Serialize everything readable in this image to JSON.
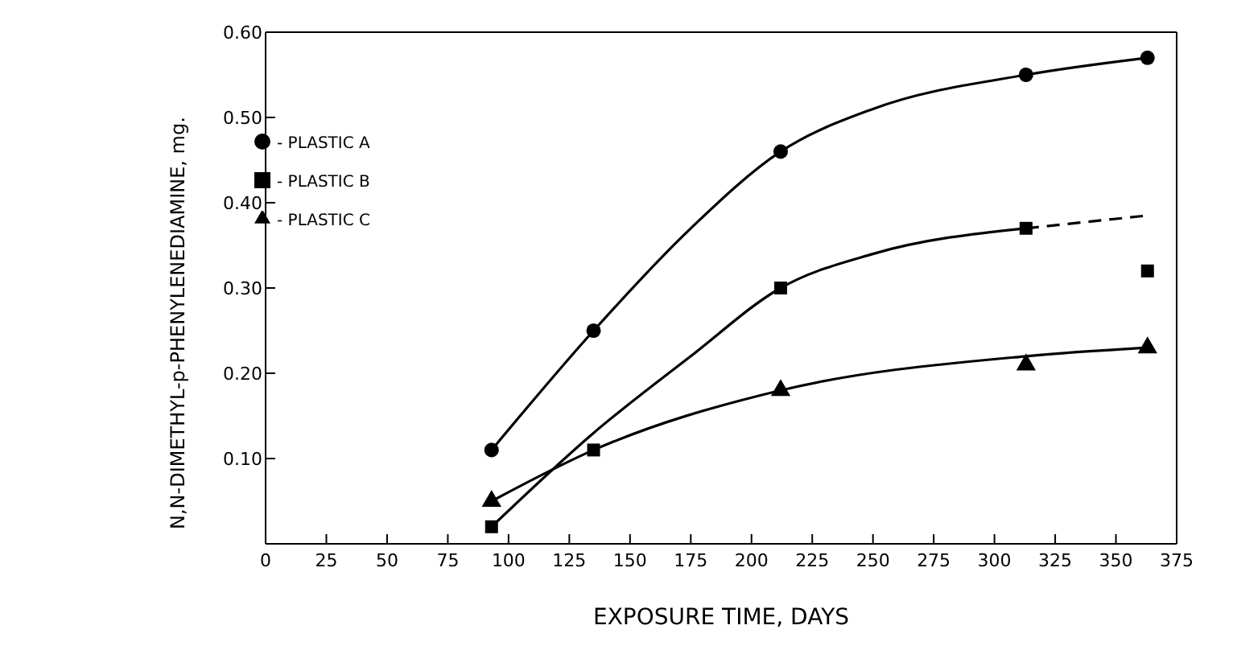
{
  "chart_data": {
    "type": "scatter",
    "xlabel": "EXPOSURE TIME, DAYS",
    "ylabel": "N,N-DIMETHYL-p-PHENYLENEDIAMINE, mg.",
    "xlim": [
      0,
      375
    ],
    "xticks": [
      0,
      25,
      50,
      75,
      100,
      125,
      150,
      175,
      200,
      225,
      250,
      275,
      300,
      325,
      350,
      375
    ],
    "ylim": [
      0,
      0.6
    ],
    "yticks": [
      {
        "value": 0.1,
        "label": "0.10"
      },
      {
        "value": 0.2,
        "label": "0.20"
      },
      {
        "value": 0.3,
        "label": "0.30"
      },
      {
        "value": 0.4,
        "label": "0.40"
      },
      {
        "value": 0.5,
        "label": "0.50"
      },
      {
        "value": 0.6,
        "label": "0.60"
      }
    ],
    "legend": "top left",
    "series": [
      {
        "name": "- PLASTIC A",
        "color": "#000000",
        "marker": "circle",
        "x": [
          93,
          135,
          212,
          313,
          363
        ],
        "values": [
          0.11,
          0.25,
          0.46,
          0.55,
          0.57
        ]
      },
      {
        "name": "- PLASTIC B",
        "color": "#000000",
        "marker": "square",
        "x": [
          93,
          135,
          212,
          313,
          363
        ],
        "values": [
          0.02,
          0.11,
          0.3,
          0.37,
          0.32
        ]
      },
      {
        "name": "- PLASTIC C",
        "color": "#000000",
        "marker": "triangle",
        "x": [
          93,
          212,
          313,
          363
        ],
        "values": [
          0.05,
          0.18,
          0.21,
          0.23
        ]
      },
      {
        "type": "line",
        "color": "#000000",
        "marker": "none",
        "line_style": "solid",
        "x": [
          93,
          135,
          175,
          212,
          250,
          313,
          363
        ],
        "values": [
          0.11,
          0.25,
          0.37,
          0.46,
          0.51,
          0.55,
          0.57
        ]
      },
      {
        "type": "line",
        "color": "#000000",
        "marker": "none",
        "line_style": "solid",
        "x": [
          93,
          135,
          175,
          212,
          250,
          313
        ],
        "values": [
          0.02,
          0.13,
          0.22,
          0.3,
          0.34,
          0.37
        ]
      },
      {
        "type": "line",
        "color": "#000000",
        "marker": "none",
        "line_style": "dashed",
        "x": [
          313,
          363
        ],
        "values": [
          0.37,
          0.385
        ]
      },
      {
        "type": "line",
        "color": "#000000",
        "marker": "none",
        "line_style": "solid",
        "x": [
          93,
          135,
          212,
          313,
          363
        ],
        "values": [
          0.05,
          0.11,
          0.18,
          0.22,
          0.23
        ]
      }
    ]
  }
}
